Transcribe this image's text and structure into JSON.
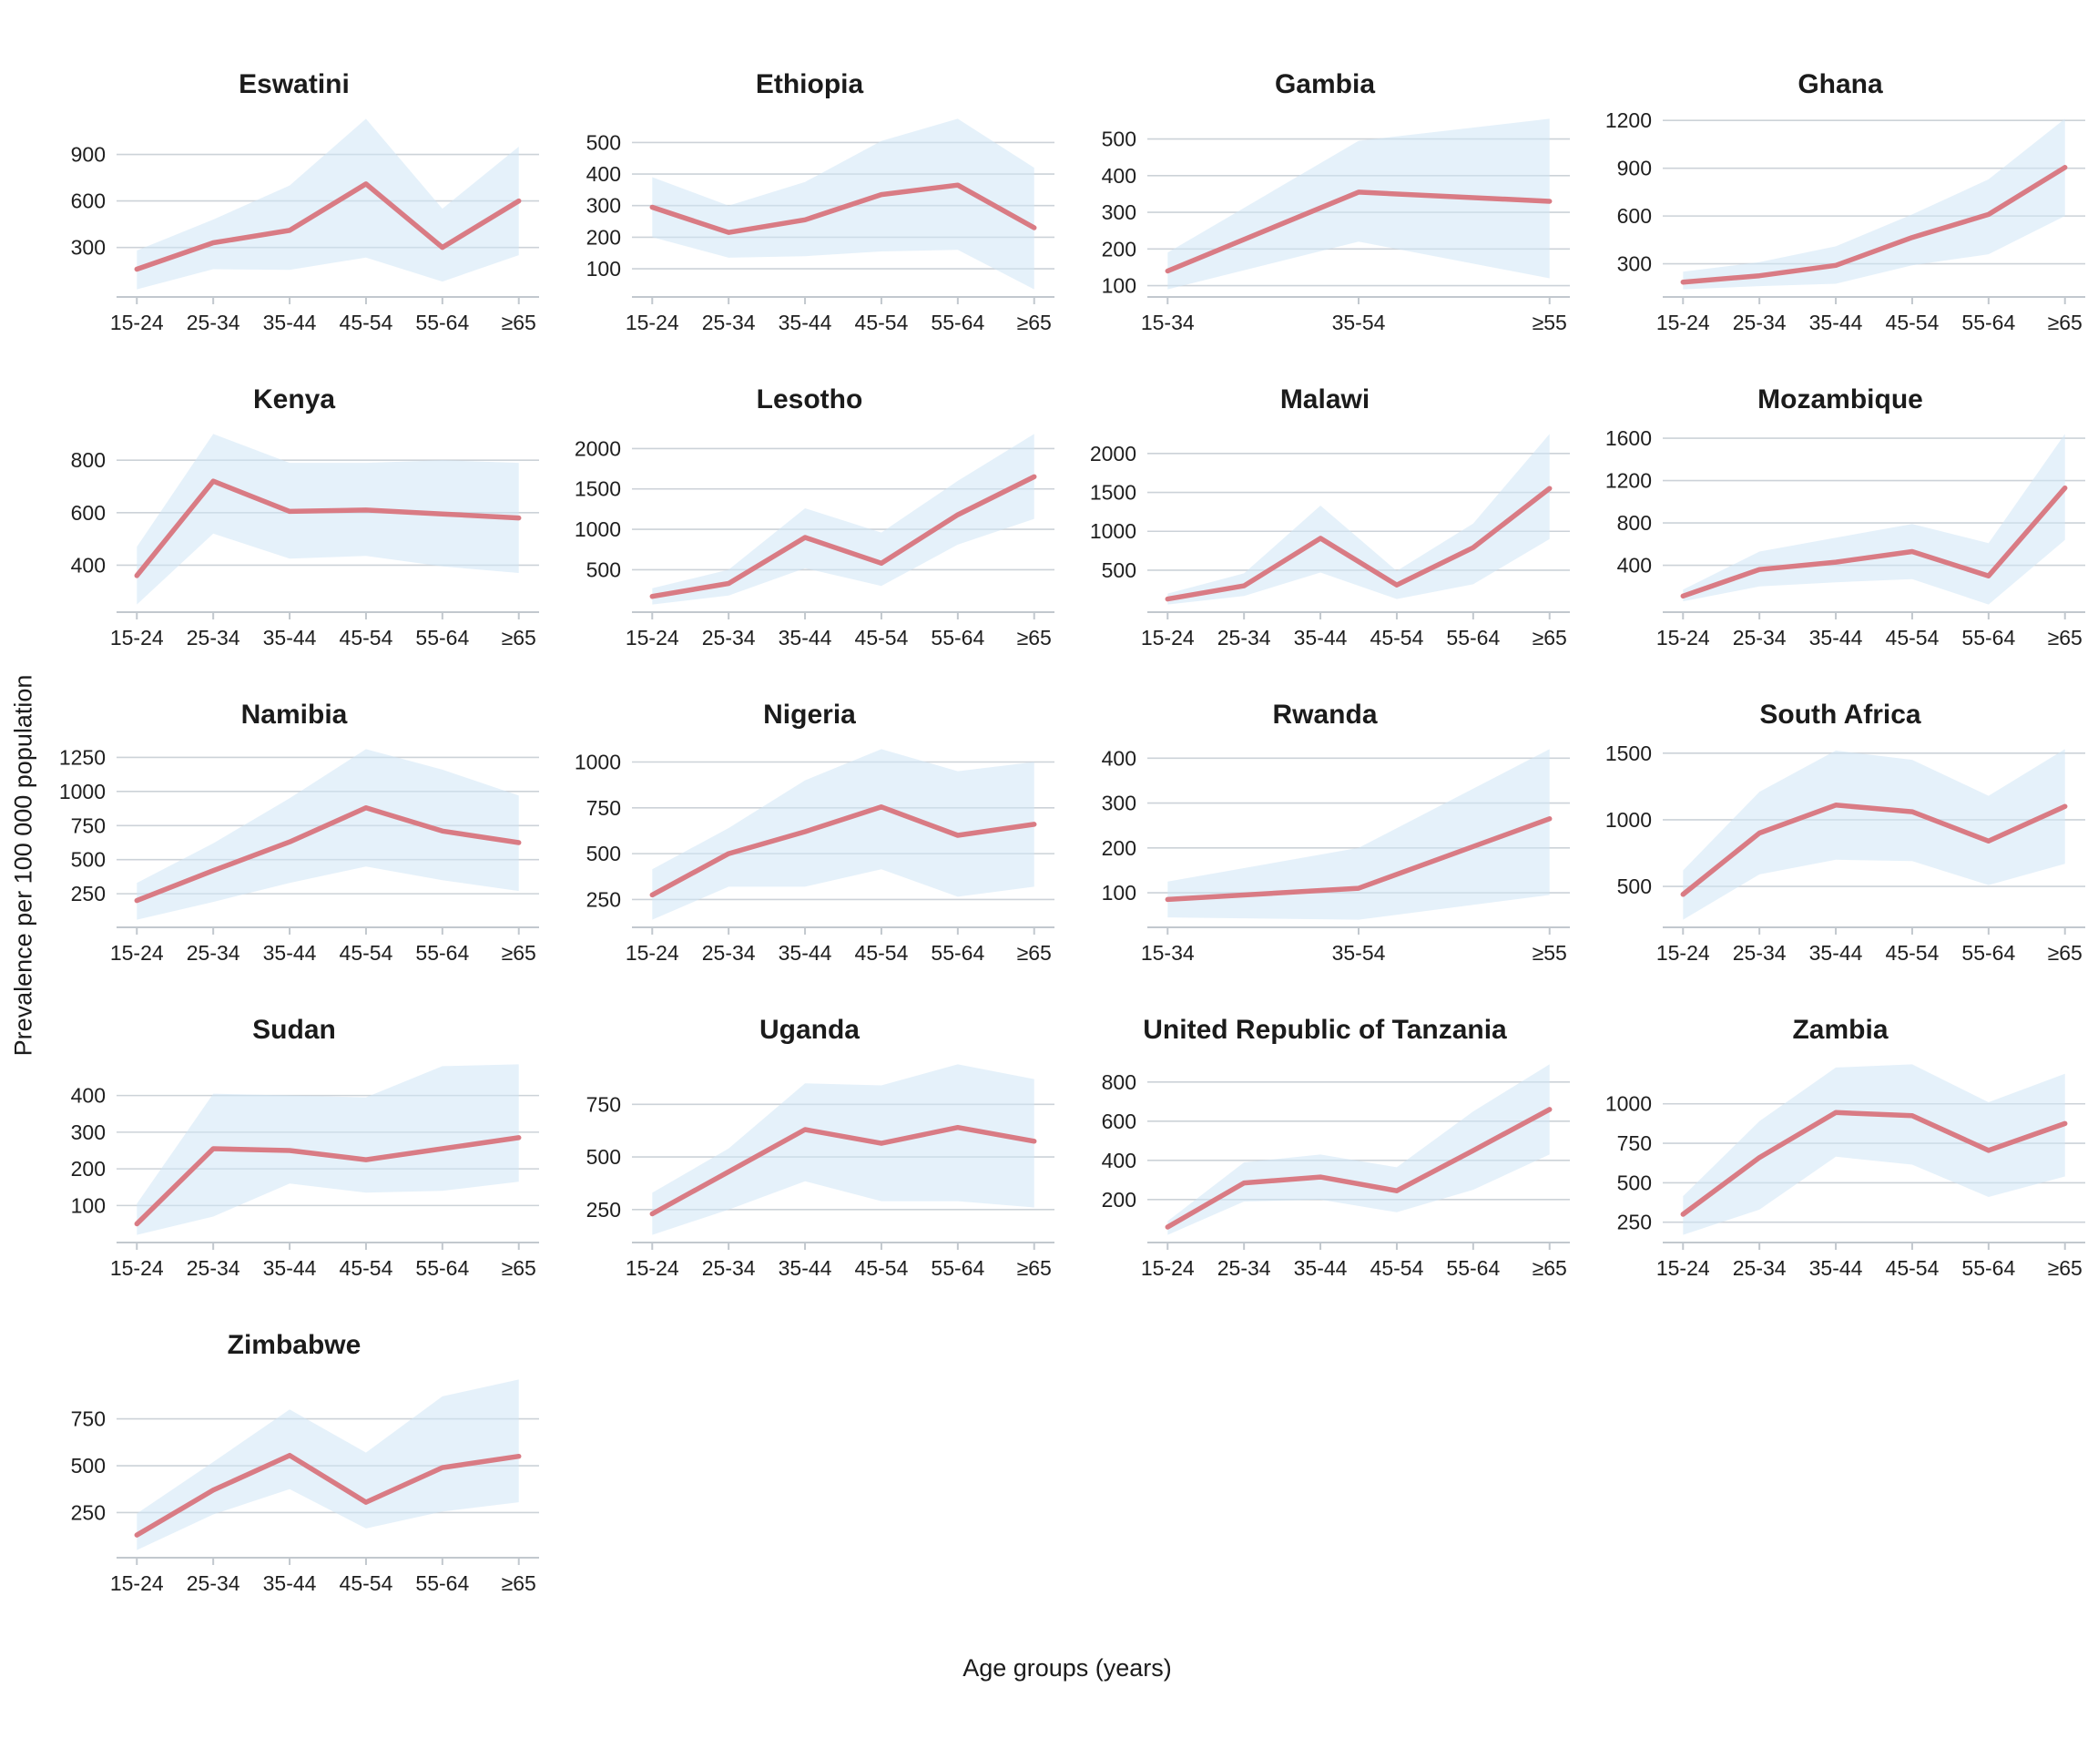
{
  "figure": {
    "x_axis_label": "Age groups (years)",
    "y_axis_label": "Prevalence per 100 000 population",
    "colors": {
      "line": "#d97b84",
      "band": "#cfe6f6",
      "grid": "#ccd2d8",
      "axis": "#c2c8ce",
      "tick_text": "#1f1f1f"
    }
  },
  "chart_data": [
    {
      "type": "line",
      "title": "Eswatini",
      "categories": [
        "15-24",
        "25-34",
        "35-44",
        "45-54",
        "55-64",
        "≥65"
      ],
      "y_ticks": [
        300,
        600,
        900
      ],
      "series": [
        {
          "name": "prevalence",
          "values": [
            160,
            330,
            410,
            710,
            300,
            600
          ]
        },
        {
          "name": "lower_ci",
          "values": [
            30,
            160,
            155,
            235,
            80,
            250
          ]
        },
        {
          "name": "upper_ci",
          "values": [
            280,
            480,
            700,
            1130,
            550,
            950
          ]
        }
      ]
    },
    {
      "type": "line",
      "title": "Ethiopia",
      "categories": [
        "15-24",
        "25-34",
        "35-44",
        "45-54",
        "55-64",
        "≥65"
      ],
      "y_ticks": [
        100,
        200,
        300,
        400,
        500
      ],
      "series": [
        {
          "name": "prevalence",
          "values": [
            295,
            215,
            255,
            335,
            365,
            230
          ]
        },
        {
          "name": "lower_ci",
          "values": [
            200,
            135,
            140,
            155,
            160,
            35
          ]
        },
        {
          "name": "upper_ci",
          "values": [
            390,
            300,
            375,
            505,
            575,
            420
          ]
        }
      ]
    },
    {
      "type": "line",
      "title": "Gambia",
      "categories": [
        "15-34",
        "35-54",
        "≥55"
      ],
      "y_ticks": [
        100,
        200,
        300,
        400,
        500
      ],
      "series": [
        {
          "name": "prevalence",
          "values": [
            140,
            355,
            330
          ]
        },
        {
          "name": "lower_ci",
          "values": [
            90,
            220,
            120
          ]
        },
        {
          "name": "upper_ci",
          "values": [
            190,
            495,
            555
          ]
        }
      ]
    },
    {
      "type": "line",
      "title": "Ghana",
      "categories": [
        "15-24",
        "25-34",
        "35-44",
        "45-54",
        "55-64",
        "≥65"
      ],
      "y_ticks": [
        300,
        600,
        900,
        1200
      ],
      "series": [
        {
          "name": "prevalence",
          "values": [
            185,
            225,
            290,
            465,
            610,
            905
          ]
        },
        {
          "name": "lower_ci",
          "values": [
            140,
            160,
            175,
            290,
            360,
            600
          ]
        },
        {
          "name": "upper_ci",
          "values": [
            250,
            310,
            410,
            610,
            830,
            1210
          ]
        }
      ]
    },
    {
      "type": "line",
      "title": "Kenya",
      "categories": [
        "15-24",
        "25-34",
        "35-44",
        "45-54",
        "55-64",
        "≥65"
      ],
      "y_ticks": [
        400,
        600,
        800
      ],
      "series": [
        {
          "name": "prevalence",
          "values": [
            360,
            720,
            605,
            610,
            595,
            580
          ]
        },
        {
          "name": "lower_ci",
          "values": [
            250,
            520,
            425,
            435,
            395,
            370
          ]
        },
        {
          "name": "upper_ci",
          "values": [
            470,
            900,
            790,
            790,
            800,
            790
          ]
        }
      ]
    },
    {
      "type": "line",
      "title": "Lesotho",
      "categories": [
        "15-24",
        "25-34",
        "35-44",
        "45-54",
        "55-64",
        "≥65"
      ],
      "y_ticks": [
        500,
        1000,
        1500,
        2000
      ],
      "series": [
        {
          "name": "prevalence",
          "values": [
            170,
            330,
            900,
            580,
            1180,
            1650
          ]
        },
        {
          "name": "lower_ci",
          "values": [
            70,
            180,
            520,
            300,
            810,
            1130
          ]
        },
        {
          "name": "upper_ci",
          "values": [
            270,
            500,
            1260,
            960,
            1600,
            2180
          ]
        }
      ]
    },
    {
      "type": "line",
      "title": "Malawi",
      "categories": [
        "15-24",
        "25-34",
        "35-44",
        "45-54",
        "55-64",
        "≥65"
      ],
      "y_ticks": [
        500,
        1000,
        1500,
        2000
      ],
      "series": [
        {
          "name": "prevalence",
          "values": [
            130,
            300,
            910,
            310,
            790,
            1550
          ]
        },
        {
          "name": "lower_ci",
          "values": [
            60,
            170,
            470,
            130,
            320,
            900
          ]
        },
        {
          "name": "upper_ci",
          "values": [
            200,
            460,
            1330,
            490,
            1100,
            2250
          ]
        }
      ]
    },
    {
      "type": "line",
      "title": "Mozambique",
      "categories": [
        "15-24",
        "25-34",
        "35-44",
        "45-54",
        "55-64",
        "≥65"
      ],
      "y_ticks": [
        400,
        800,
        1200,
        1600
      ],
      "series": [
        {
          "name": "prevalence",
          "values": [
            110,
            360,
            430,
            530,
            300,
            1130
          ]
        },
        {
          "name": "lower_ci",
          "values": [
            60,
            200,
            240,
            270,
            30,
            640
          ]
        },
        {
          "name": "upper_ci",
          "values": [
            170,
            530,
            660,
            790,
            610,
            1640
          ]
        }
      ]
    },
    {
      "type": "line",
      "title": "Namibia",
      "categories": [
        "15-24",
        "25-34",
        "35-44",
        "45-54",
        "55-64",
        "≥65"
      ],
      "y_ticks": [
        250,
        500,
        750,
        1000,
        1250
      ],
      "series": [
        {
          "name": "prevalence",
          "values": [
            200,
            420,
            630,
            880,
            710,
            625
          ]
        },
        {
          "name": "lower_ci",
          "values": [
            60,
            190,
            330,
            450,
            350,
            270
          ]
        },
        {
          "name": "upper_ci",
          "values": [
            330,
            620,
            950,
            1310,
            1160,
            970
          ]
        }
      ]
    },
    {
      "type": "line",
      "title": "Nigeria",
      "categories": [
        "15-24",
        "25-34",
        "35-44",
        "45-54",
        "55-64",
        "≥65"
      ],
      "y_ticks": [
        250,
        500,
        750,
        1000
      ],
      "series": [
        {
          "name": "prevalence",
          "values": [
            275,
            500,
            620,
            755,
            600,
            660
          ]
        },
        {
          "name": "lower_ci",
          "values": [
            140,
            320,
            320,
            415,
            265,
            320
          ]
        },
        {
          "name": "upper_ci",
          "values": [
            415,
            640,
            900,
            1070,
            950,
            1000
          ]
        }
      ]
    },
    {
      "type": "line",
      "title": "Rwanda",
      "categories": [
        "15-34",
        "35-54",
        "≥55"
      ],
      "y_ticks": [
        100,
        200,
        300,
        400
      ],
      "series": [
        {
          "name": "prevalence",
          "values": [
            85,
            110,
            265
          ]
        },
        {
          "name": "lower_ci",
          "values": [
            45,
            40,
            95
          ]
        },
        {
          "name": "upper_ci",
          "values": [
            125,
            200,
            420
          ]
        }
      ]
    },
    {
      "type": "line",
      "title": "South Africa",
      "categories": [
        "15-24",
        "25-34",
        "35-44",
        "45-54",
        "55-64",
        "≥65"
      ],
      "y_ticks": [
        500,
        1000,
        1500
      ],
      "series": [
        {
          "name": "prevalence",
          "values": [
            440,
            900,
            1110,
            1060,
            840,
            1100
          ]
        },
        {
          "name": "lower_ci",
          "values": [
            250,
            590,
            700,
            690,
            510,
            670
          ]
        },
        {
          "name": "upper_ci",
          "values": [
            620,
            1210,
            1520,
            1450,
            1180,
            1530
          ]
        }
      ]
    },
    {
      "type": "line",
      "title": "Sudan",
      "categories": [
        "15-24",
        "25-34",
        "35-44",
        "45-54",
        "55-64",
        "≥65"
      ],
      "y_ticks": [
        100,
        200,
        300,
        400
      ],
      "series": [
        {
          "name": "prevalence",
          "values": [
            50,
            255,
            250,
            225,
            255,
            285
          ]
        },
        {
          "name": "lower_ci",
          "values": [
            20,
            70,
            160,
            135,
            140,
            165
          ]
        },
        {
          "name": "upper_ci",
          "values": [
            105,
            405,
            400,
            395,
            480,
            485
          ]
        }
      ]
    },
    {
      "type": "line",
      "title": "Uganda",
      "categories": [
        "15-24",
        "25-34",
        "35-44",
        "45-54",
        "55-64",
        "≥65"
      ],
      "y_ticks": [
        250,
        500,
        750
      ],
      "series": [
        {
          "name": "prevalence",
          "values": [
            230,
            430,
            630,
            565,
            640,
            575
          ]
        },
        {
          "name": "lower_ci",
          "values": [
            130,
            250,
            385,
            290,
            290,
            260
          ]
        },
        {
          "name": "upper_ci",
          "values": [
            330,
            540,
            850,
            840,
            940,
            870
          ]
        }
      ]
    },
    {
      "type": "line",
      "title": "United Republic of Tanzania",
      "categories": [
        "15-24",
        "25-34",
        "35-44",
        "45-54",
        "55-64",
        "≥65"
      ],
      "y_ticks": [
        200,
        400,
        600,
        800
      ],
      "series": [
        {
          "name": "prevalence",
          "values": [
            60,
            285,
            315,
            245,
            450,
            660
          ]
        },
        {
          "name": "lower_ci",
          "values": [
            20,
            190,
            200,
            135,
            250,
            430
          ]
        },
        {
          "name": "upper_ci",
          "values": [
            90,
            390,
            430,
            365,
            650,
            890
          ]
        }
      ]
    },
    {
      "type": "line",
      "title": "Zambia",
      "categories": [
        "15-24",
        "25-34",
        "35-44",
        "45-54",
        "55-64",
        "≥65"
      ],
      "y_ticks": [
        250,
        500,
        750,
        1000
      ],
      "series": [
        {
          "name": "prevalence",
          "values": [
            300,
            660,
            945,
            925,
            705,
            875
          ]
        },
        {
          "name": "lower_ci",
          "values": [
            170,
            330,
            665,
            615,
            410,
            540
          ]
        },
        {
          "name": "upper_ci",
          "values": [
            415,
            890,
            1230,
            1250,
            1010,
            1190
          ]
        }
      ]
    },
    {
      "type": "line",
      "title": "Zimbabwe",
      "categories": [
        "15-24",
        "25-34",
        "35-44",
        "45-54",
        "55-64",
        "≥65"
      ],
      "y_ticks": [
        250,
        500,
        750
      ],
      "series": [
        {
          "name": "prevalence",
          "values": [
            130,
            370,
            555,
            305,
            490,
            550
          ]
        },
        {
          "name": "lower_ci",
          "values": [
            50,
            240,
            375,
            165,
            255,
            305
          ]
        },
        {
          "name": "upper_ci",
          "values": [
            245,
            520,
            800,
            570,
            870,
            960
          ]
        }
      ]
    }
  ]
}
